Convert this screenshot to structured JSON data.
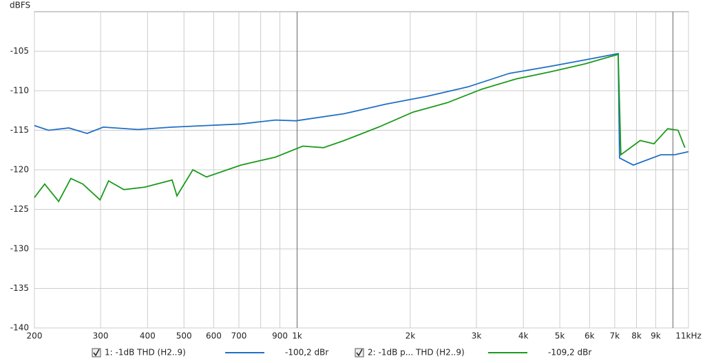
{
  "chart_data": {
    "type": "line",
    "y_label": "dBFS",
    "log_x": true,
    "grid": true,
    "xlim": [
      200,
      11000
    ],
    "ylim": [
      -140,
      -100
    ],
    "xticks": [
      200,
      300,
      400,
      500,
      600,
      700,
      900,
      {
        "value": 1000,
        "label": "1k"
      },
      {
        "value": 2000,
        "label": "2k"
      },
      {
        "value": 3000,
        "label": "3k"
      },
      {
        "value": 4000,
        "label": "4k"
      },
      {
        "value": 5000,
        "label": "5k"
      },
      {
        "value": 6000,
        "label": "6k"
      },
      {
        "value": 7000,
        "label": "7k"
      },
      {
        "value": 8000,
        "label": "8k"
      },
      {
        "value": 9000,
        "label": "9k"
      },
      {
        "value": 11000,
        "label": "11kHz"
      }
    ],
    "xminorticks": [
      800,
      10000
    ],
    "yticks": [
      -140,
      -135,
      -130,
      -125,
      -120,
      -115,
      -110,
      -105
    ],
    "series": [
      {
        "name": "1: -1dB THD (H2..9)",
        "readout": "-100,2 dBr",
        "color": "#1f6fc5",
        "x": [
          200,
          218,
          247,
          276,
          305,
          377,
          465,
          574,
          709,
          875,
          993,
          1334,
          1718,
          2214,
          2851,
          3672,
          4729,
          5838,
          7150,
          7210,
          7846,
          9286,
          10100,
          11000
        ],
        "values": [
          -114.4,
          -115,
          -114.7,
          -115.4,
          -114.6,
          -114.9,
          -114.6,
          -114.4,
          -114.2,
          -113.7,
          -113.8,
          -112.9,
          -111.7,
          -110.7,
          -109.5,
          -107.8,
          -106.9,
          -106.1,
          -105.3,
          -118.5,
          -119.4,
          -118.1,
          -118.1,
          -117.7
        ]
      },
      {
        "name": "2: -1dB p... THD (H2..9)",
        "readout": "-109,2 dBr",
        "color": "#1a9a1a",
        "x": [
          200,
          213,
          232,
          250,
          269,
          299,
          315,
          346,
          393,
          465,
          479,
          528,
          574,
          709,
          875,
          1036,
          1175,
          1334,
          1647,
          2034,
          2512,
          3100,
          3830,
          4729,
          5838,
          7150,
          7270,
          8184,
          8900,
          9686,
          10320,
          10760
        ],
        "values": [
          -123.5,
          -121.8,
          -124,
          -121.1,
          -121.8,
          -123.8,
          -121.4,
          -122.5,
          -122.2,
          -121.3,
          -123.3,
          -120,
          -120.9,
          -119.4,
          -118.4,
          -117,
          -117.2,
          -116.3,
          -114.6,
          -112.7,
          -111.5,
          -109.8,
          -108.5,
          -107.6,
          -106.6,
          -105.4,
          -118.1,
          -116.3,
          -116.7,
          -114.8,
          -115,
          -117.2
        ]
      }
    ]
  }
}
